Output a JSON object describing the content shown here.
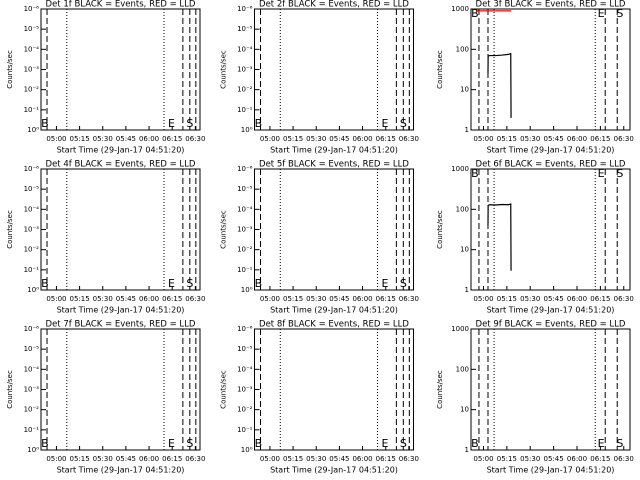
{
  "chart_data": [
    {
      "type": "line",
      "title": "Det 1f BLACK = Events, RED = LLD",
      "xlabel": "Start Time (29-Jan-17 04:51:20)",
      "ylabel": "Counts/sec",
      "log_y": true,
      "xlim": [
        290,
        393
      ],
      "xticks": [
        {
          "value": 300,
          "label": "05:00"
        },
        {
          "value": 315,
          "label": "05:15"
        },
        {
          "value": 330,
          "label": "05:30"
        },
        {
          "value": 345,
          "label": "05:45"
        },
        {
          "value": 360,
          "label": "06:00"
        },
        {
          "value": 375,
          "label": "06:15"
        },
        {
          "value": 390,
          "label": "06:30"
        }
      ],
      "ylim": [
        1,
        1e-06
      ],
      "yticks": [
        {
          "value": 1,
          "label": "10⁰"
        },
        {
          "value": 0.1,
          "label": "10⁻¹"
        },
        {
          "value": 0.01,
          "label": "10⁻²"
        },
        {
          "value": 0.001,
          "label": "10⁻³"
        },
        {
          "value": 0.0001,
          "label": "10⁻⁴"
        },
        {
          "value": 1e-05,
          "label": "10⁻⁵"
        },
        {
          "value": 1e-06,
          "label": "10⁻⁶"
        }
      ],
      "series": [],
      "vlines": [
        {
          "x": 293.9,
          "style": "dashed"
        },
        {
          "x": 306.7,
          "style": "dotted"
        },
        {
          "x": 369.7,
          "style": "dotted"
        },
        {
          "x": 381.9,
          "style": "dashed"
        },
        {
          "x": 386.4,
          "style": "dashed"
        },
        {
          "x": 390.3,
          "style": "dashed"
        }
      ],
      "annotations": [
        {
          "text": "B",
          "x": 292.5
        },
        {
          "text": "E",
          "x": 374.5
        },
        {
          "text": "S",
          "x": 386.4
        }
      ],
      "annotation_position": "bottom"
    },
    {
      "type": "line",
      "title": "Det 2f BLACK = Events, RED = LLD",
      "xlabel": "Start Time (29-Jan-17 04:51:20)",
      "ylabel": "Counts/sec",
      "log_y": true,
      "xlim": [
        290,
        393
      ],
      "xticks": [
        {
          "value": 300,
          "label": "05:00"
        },
        {
          "value": 315,
          "label": "05:15"
        },
        {
          "value": 330,
          "label": "05:30"
        },
        {
          "value": 345,
          "label": "05:45"
        },
        {
          "value": 360,
          "label": "06:00"
        },
        {
          "value": 375,
          "label": "06:15"
        },
        {
          "value": 390,
          "label": "06:30"
        }
      ],
      "ylim": [
        1,
        1e-06
      ],
      "yticks": [
        {
          "value": 1,
          "label": "10⁰"
        },
        {
          "value": 0.1,
          "label": "10⁻¹"
        },
        {
          "value": 0.01,
          "label": "10⁻²"
        },
        {
          "value": 0.001,
          "label": "10⁻³"
        },
        {
          "value": 0.0001,
          "label": "10⁻⁴"
        },
        {
          "value": 1e-05,
          "label": "10⁻⁵"
        },
        {
          "value": 1e-06,
          "label": "10⁻⁶"
        }
      ],
      "series": [],
      "vlines": [
        {
          "x": 293.9,
          "style": "dashed"
        },
        {
          "x": 306.7,
          "style": "dotted"
        },
        {
          "x": 369.7,
          "style": "dotted"
        },
        {
          "x": 381.9,
          "style": "dashed"
        },
        {
          "x": 386.4,
          "style": "dashed"
        },
        {
          "x": 390.3,
          "style": "dashed"
        }
      ],
      "annotations": [
        {
          "text": "B",
          "x": 292.5
        },
        {
          "text": "E",
          "x": 374.5
        },
        {
          "text": "S",
          "x": 386.4
        }
      ],
      "annotation_position": "bottom"
    },
    {
      "type": "line",
      "title": "Det 3f BLACK = Events, RED = LLD",
      "xlabel": "Start Time (29-Jan-17 04:51:20)",
      "ylabel": "Counts/sec",
      "log_y": true,
      "xlim": [
        292,
        394
      ],
      "xticks": [
        {
          "value": 300,
          "label": "05:00"
        },
        {
          "value": 315,
          "label": "05:15"
        },
        {
          "value": 330,
          "label": "05:30"
        },
        {
          "value": 345,
          "label": "05:45"
        },
        {
          "value": 360,
          "label": "06:00"
        },
        {
          "value": 375,
          "label": "06:15"
        },
        {
          "value": 390,
          "label": "06:30"
        }
      ],
      "ylim": [
        1,
        1000
      ],
      "yticks": [
        1,
        10,
        100,
        1000
      ],
      "series": [
        {
          "name": "Events",
          "color": "#000000",
          "x": [
            302.9,
            303.0,
            304,
            308,
            312,
            316,
            317.5,
            317.7
          ],
          "values": [
            25,
            68,
            70,
            70,
            72,
            75,
            78,
            2
          ]
        },
        {
          "name": "LLD",
          "color": "#ff0000",
          "x": [
            295.2,
            317.7
          ],
          "values": [
            900,
            900
          ]
        }
      ],
      "vlines": [
        {
          "x": 297.1,
          "style": "dashed"
        },
        {
          "x": 302.9,
          "style": "dashed"
        },
        {
          "x": 306.8,
          "style": "dotted"
        },
        {
          "x": 371.7,
          "style": "dotted"
        },
        {
          "x": 378.1,
          "style": "dashed"
        },
        {
          "x": 385.8,
          "style": "dashed"
        }
      ],
      "annotations": [
        {
          "text": "B",
          "x": 294.5
        },
        {
          "text": "E",
          "x": 375.5
        },
        {
          "text": "S",
          "x": 387.5
        }
      ],
      "annotation_position": "top"
    },
    {
      "type": "line",
      "title": "Det 4f BLACK = Events, RED = LLD",
      "xlabel": "Start Time (29-Jan-17 04:51:20)",
      "ylabel": "Counts/sec",
      "log_y": true,
      "xlim": [
        290,
        393
      ],
      "xticks": [
        {
          "value": 300,
          "label": "05:00"
        },
        {
          "value": 315,
          "label": "05:15"
        },
        {
          "value": 330,
          "label": "05:30"
        },
        {
          "value": 345,
          "label": "05:45"
        },
        {
          "value": 360,
          "label": "06:00"
        },
        {
          "value": 375,
          "label": "06:15"
        },
        {
          "value": 390,
          "label": "06:30"
        }
      ],
      "ylim": [
        1,
        1e-06
      ],
      "yticks": [
        {
          "value": 1,
          "label": "10⁰"
        },
        {
          "value": 0.1,
          "label": "10⁻¹"
        },
        {
          "value": 0.01,
          "label": "10⁻²"
        },
        {
          "value": 0.001,
          "label": "10⁻³"
        },
        {
          "value": 0.0001,
          "label": "10⁻⁴"
        },
        {
          "value": 1e-05,
          "label": "10⁻⁵"
        },
        {
          "value": 1e-06,
          "label": "10⁻⁶"
        }
      ],
      "series": [],
      "vlines": [
        {
          "x": 293.9,
          "style": "dashed"
        },
        {
          "x": 306.7,
          "style": "dotted"
        },
        {
          "x": 369.7,
          "style": "dotted"
        },
        {
          "x": 381.9,
          "style": "dashed"
        },
        {
          "x": 386.4,
          "style": "dashed"
        },
        {
          "x": 390.3,
          "style": "dashed"
        }
      ],
      "annotations": [
        {
          "text": "B",
          "x": 292.5
        },
        {
          "text": "E",
          "x": 374.5
        },
        {
          "text": "S",
          "x": 386.4
        }
      ],
      "annotation_position": "bottom"
    },
    {
      "type": "line",
      "title": "Det 5f BLACK = Events, RED = LLD",
      "xlabel": "Start Time (29-Jan-17 04:51:20)",
      "ylabel": "Counts/sec",
      "log_y": true,
      "xlim": [
        290,
        393
      ],
      "xticks": [
        {
          "value": 300,
          "label": "05:00"
        },
        {
          "value": 315,
          "label": "05:15"
        },
        {
          "value": 330,
          "label": "05:30"
        },
        {
          "value": 345,
          "label": "05:45"
        },
        {
          "value": 360,
          "label": "06:00"
        },
        {
          "value": 375,
          "label": "06:15"
        },
        {
          "value": 390,
          "label": "06:30"
        }
      ],
      "ylim": [
        1,
        1e-06
      ],
      "yticks": [
        {
          "value": 1,
          "label": "10⁰"
        },
        {
          "value": 0.1,
          "label": "10⁻¹"
        },
        {
          "value": 0.01,
          "label": "10⁻²"
        },
        {
          "value": 0.001,
          "label": "10⁻³"
        },
        {
          "value": 0.0001,
          "label": "10⁻⁴"
        },
        {
          "value": 1e-05,
          "label": "10⁻⁵"
        },
        {
          "value": 1e-06,
          "label": "10⁻⁶"
        }
      ],
      "series": [],
      "vlines": [
        {
          "x": 293.9,
          "style": "dashed"
        },
        {
          "x": 306.7,
          "style": "dotted"
        },
        {
          "x": 369.7,
          "style": "dotted"
        },
        {
          "x": 381.9,
          "style": "dashed"
        },
        {
          "x": 386.4,
          "style": "dashed"
        },
        {
          "x": 390.3,
          "style": "dashed"
        }
      ],
      "annotations": [
        {
          "text": "B",
          "x": 292.5
        },
        {
          "text": "E",
          "x": 374.5
        },
        {
          "text": "S",
          "x": 386.4
        }
      ],
      "annotation_position": "bottom"
    },
    {
      "type": "line",
      "title": "Det 6f BLACK = Events, RED = LLD",
      "xlabel": "Start Time (29-Jan-17 04:51:20)",
      "ylabel": "Counts/sec",
      "log_y": true,
      "xlim": [
        292,
        394
      ],
      "xticks": [
        {
          "value": 300,
          "label": "05:00"
        },
        {
          "value": 315,
          "label": "05:15"
        },
        {
          "value": 330,
          "label": "05:30"
        },
        {
          "value": 345,
          "label": "05:45"
        },
        {
          "value": 360,
          "label": "06:00"
        },
        {
          "value": 375,
          "label": "06:15"
        },
        {
          "value": 390,
          "label": "06:30"
        }
      ],
      "ylim": [
        1,
        1000
      ],
      "yticks": [
        1,
        10,
        100,
        1000
      ],
      "series": [
        {
          "name": "Events",
          "color": "#000000",
          "x": [
            302.9,
            303.0,
            304,
            308,
            312,
            316,
            317.5,
            317.7
          ],
          "values": [
            40,
            125,
            130,
            128,
            132,
            130,
            135,
            3
          ]
        }
      ],
      "vlines": [
        {
          "x": 297.1,
          "style": "dashed"
        },
        {
          "x": 302.9,
          "style": "dashed"
        },
        {
          "x": 306.8,
          "style": "dotted"
        },
        {
          "x": 371.7,
          "style": "dotted"
        },
        {
          "x": 378.1,
          "style": "dashed"
        },
        {
          "x": 385.8,
          "style": "dashed"
        }
      ],
      "annotations": [
        {
          "text": "B",
          "x": 294.5
        },
        {
          "text": "E",
          "x": 375.5
        },
        {
          "text": "S",
          "x": 387.5
        }
      ],
      "annotation_position": "top"
    },
    {
      "type": "line",
      "title": "Det 7f BLACK = Events, RED = LLD",
      "xlabel": "Start Time (29-Jan-17 04:51:20)",
      "ylabel": "Counts/sec",
      "log_y": true,
      "xlim": [
        290,
        393
      ],
      "xticks": [
        {
          "value": 300,
          "label": "05:00"
        },
        {
          "value": 315,
          "label": "05:15"
        },
        {
          "value": 330,
          "label": "05:30"
        },
        {
          "value": 345,
          "label": "05:45"
        },
        {
          "value": 360,
          "label": "06:00"
        },
        {
          "value": 375,
          "label": "06:15"
        },
        {
          "value": 390,
          "label": "06:30"
        }
      ],
      "ylim": [
        1,
        1e-06
      ],
      "yticks": [
        {
          "value": 1,
          "label": "10⁰"
        },
        {
          "value": 0.1,
          "label": "10⁻¹"
        },
        {
          "value": 0.01,
          "label": "10⁻²"
        },
        {
          "value": 0.001,
          "label": "10⁻³"
        },
        {
          "value": 0.0001,
          "label": "10⁻⁴"
        },
        {
          "value": 1e-05,
          "label": "10⁻⁵"
        },
        {
          "value": 1e-06,
          "label": "10⁻⁶"
        }
      ],
      "series": [],
      "vlines": [
        {
          "x": 293.9,
          "style": "dashed"
        },
        {
          "x": 306.7,
          "style": "dotted"
        },
        {
          "x": 369.7,
          "style": "dotted"
        },
        {
          "x": 381.9,
          "style": "dashed"
        },
        {
          "x": 386.4,
          "style": "dashed"
        },
        {
          "x": 390.3,
          "style": "dashed"
        }
      ],
      "annotations": [
        {
          "text": "B",
          "x": 292.5
        },
        {
          "text": "E",
          "x": 374.5
        },
        {
          "text": "S",
          "x": 386.4
        }
      ],
      "annotation_position": "bottom"
    },
    {
      "type": "line",
      "title": "Det 8f BLACK = Events, RED = LLD",
      "xlabel": "Start Time (29-Jan-17 04:51:20)",
      "ylabel": "Counts/sec",
      "log_y": true,
      "xlim": [
        290,
        393
      ],
      "xticks": [
        {
          "value": 300,
          "label": "05:00"
        },
        {
          "value": 315,
          "label": "05:15"
        },
        {
          "value": 330,
          "label": "05:30"
        },
        {
          "value": 345,
          "label": "05:45"
        },
        {
          "value": 360,
          "label": "06:00"
        },
        {
          "value": 375,
          "label": "06:15"
        },
        {
          "value": 390,
          "label": "06:30"
        }
      ],
      "ylim": [
        1,
        1e-06
      ],
      "yticks": [
        {
          "value": 1,
          "label": "10⁰"
        },
        {
          "value": 0.1,
          "label": "10⁻¹"
        },
        {
          "value": 0.01,
          "label": "10⁻²"
        },
        {
          "value": 0.001,
          "label": "10⁻³"
        },
        {
          "value": 0.0001,
          "label": "10⁻⁴"
        },
        {
          "value": 1e-05,
          "label": "10⁻⁵"
        },
        {
          "value": 1e-06,
          "label": "10⁻⁶"
        }
      ],
      "series": [],
      "vlines": [
        {
          "x": 293.9,
          "style": "dashed"
        },
        {
          "x": 306.7,
          "style": "dotted"
        },
        {
          "x": 369.7,
          "style": "dotted"
        },
        {
          "x": 381.9,
          "style": "dashed"
        },
        {
          "x": 386.4,
          "style": "dashed"
        },
        {
          "x": 390.3,
          "style": "dashed"
        }
      ],
      "annotations": [
        {
          "text": "B",
          "x": 292.5
        },
        {
          "text": "E",
          "x": 374.5
        },
        {
          "text": "S",
          "x": 386.4
        }
      ],
      "annotation_position": "bottom"
    },
    {
      "type": "line",
      "title": "Det 9f BLACK = Events, RED = LLD",
      "xlabel": "Start Time (29-Jan-17 04:51:20)",
      "ylabel": "Counts/sec",
      "log_y": true,
      "xlim": [
        292,
        394
      ],
      "xticks": [
        {
          "value": 300,
          "label": "05:00"
        },
        {
          "value": 315,
          "label": "05:15"
        },
        {
          "value": 330,
          "label": "05:30"
        },
        {
          "value": 345,
          "label": "05:45"
        },
        {
          "value": 360,
          "label": "06:00"
        },
        {
          "value": 375,
          "label": "06:15"
        },
        {
          "value": 390,
          "label": "06:30"
        }
      ],
      "ylim": [
        1,
        1000
      ],
      "yticks": [
        1,
        10,
        100,
        1000
      ],
      "series": [],
      "vlines": [
        {
          "x": 297.1,
          "style": "dashed"
        },
        {
          "x": 302.9,
          "style": "dashed"
        },
        {
          "x": 306.8,
          "style": "dotted"
        },
        {
          "x": 371.7,
          "style": "dotted"
        },
        {
          "x": 378.1,
          "style": "dashed"
        },
        {
          "x": 385.8,
          "style": "dashed"
        }
      ],
      "annotations": [
        {
          "text": "B",
          "x": 294.5
        },
        {
          "text": "E",
          "x": 375.5
        },
        {
          "text": "S",
          "x": 387.5
        }
      ],
      "annotation_position": "bottom"
    }
  ]
}
